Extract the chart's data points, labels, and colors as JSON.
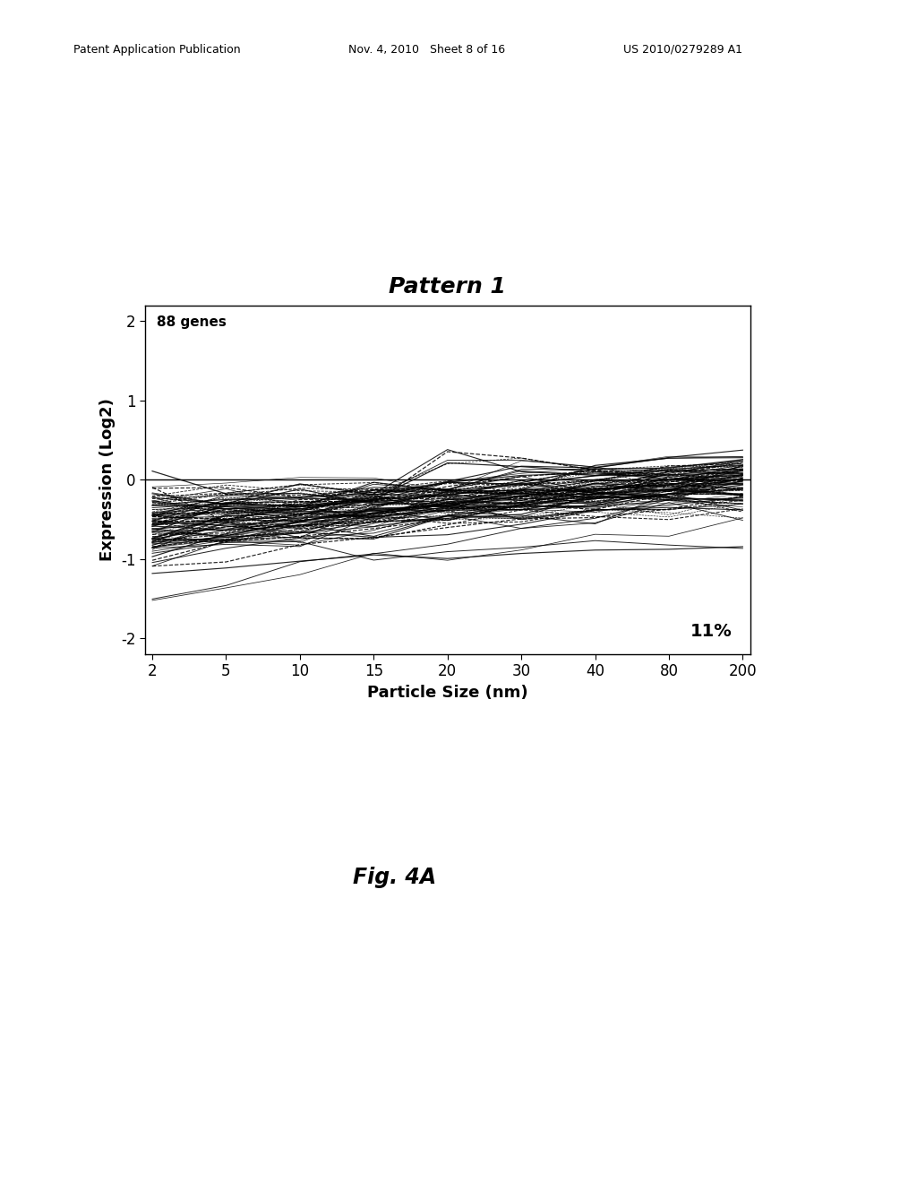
{
  "title": "Pattern 1",
  "xlabel": "Particle Size (nm)",
  "ylabel": "Expression (Log2)",
  "annotation_top": "88 genes",
  "annotation_bottom_right": "11%",
  "xtick_positions": [
    0,
    1,
    2,
    3,
    4,
    5,
    6,
    7,
    8
  ],
  "xtick_labels": [
    "2",
    "5",
    "10",
    "15",
    "20",
    "30",
    "40",
    "80",
    "200"
  ],
  "ytick_positions": [
    -2,
    -1,
    0,
    1,
    2
  ],
  "ytick_labels": [
    "-2",
    "-1",
    "0",
    "1",
    "2"
  ],
  "ylim": [
    -2.2,
    2.2
  ],
  "xlim": [
    -0.1,
    8.1
  ],
  "n_genes": 88,
  "bg_color": "#ffffff",
  "line_color": "#000000",
  "title_fontsize": 18,
  "label_fontsize": 13,
  "tick_fontsize": 12,
  "annotation_fontsize": 11,
  "seed": 42,
  "header_left": "Patent Application Publication",
  "header_mid": "Nov. 4, 2010   Sheet 8 of 16",
  "header_right": "US 2010/0279289 A1",
  "fig_label": "Fig. 4A",
  "header_fontsize": 9,
  "fig_label_fontsize": 17
}
